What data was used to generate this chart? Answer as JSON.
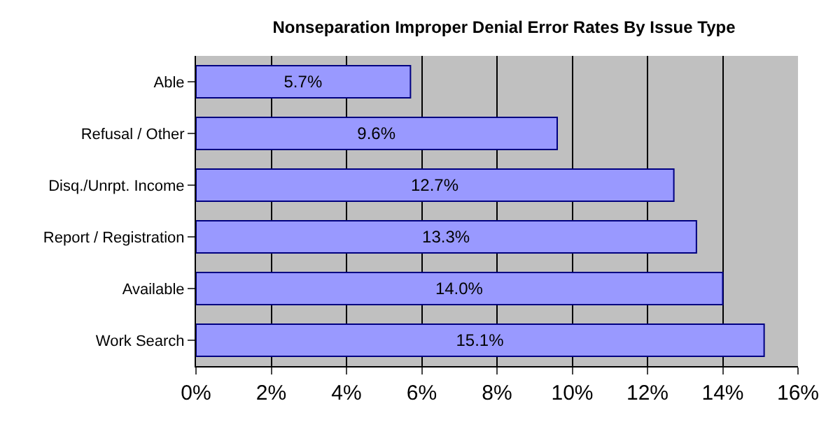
{
  "chart_data": {
    "type": "bar",
    "orientation": "horizontal",
    "title": "Nonseparation Improper Denial Error Rates By Issue Type",
    "categories": [
      "Able",
      "Refusal / Other",
      "Disq./Unrpt. Income",
      "Report / Registration",
      "Available",
      "Work Search"
    ],
    "values": [
      5.7,
      9.6,
      12.7,
      13.3,
      14.0,
      15.1
    ],
    "value_labels": [
      "5.7%",
      "9.6%",
      "12.7%",
      "13.3%",
      "14.0%",
      "15.1%"
    ],
    "color": "#9999ff",
    "xlim": [
      0,
      16
    ],
    "xticks": [
      {
        "value": 0,
        "label": "0%"
      },
      {
        "value": 2,
        "label": "2%"
      },
      {
        "value": 4,
        "label": "4%"
      },
      {
        "value": 6,
        "label": "6%"
      },
      {
        "value": 8,
        "label": "8%"
      },
      {
        "value": 10,
        "label": "10%"
      },
      {
        "value": 12,
        "label": "12%"
      },
      {
        "value": 14,
        "label": "14%"
      },
      {
        "value": 16,
        "label": "16%"
      }
    ],
    "grid": "x",
    "legend": false
  }
}
